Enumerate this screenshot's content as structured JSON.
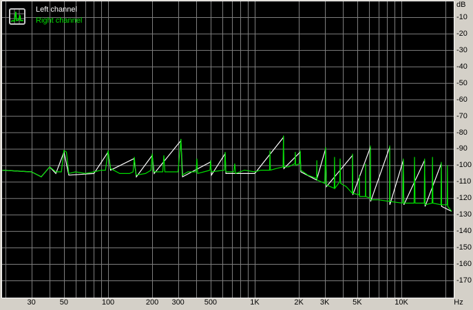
{
  "chart_data": {
    "type": "line",
    "xscale": "log",
    "xlim": [
      19,
      22000
    ],
    "ylim": [
      -180,
      0
    ],
    "grid": true,
    "legend_placement": "top-left",
    "ylabel_unit": "dB",
    "xlabel_unit": "Hz",
    "y_ticks": [
      "-10",
      "-20",
      "-30",
      "-40",
      "-50",
      "-60",
      "-70",
      "-80",
      "-90",
      "-100",
      "-110",
      "-120",
      "-130",
      "-140",
      "-150",
      "-160",
      "-170"
    ],
    "y_tick_values": [
      -10,
      -20,
      -30,
      -40,
      -50,
      -60,
      -70,
      -80,
      -90,
      -100,
      -110,
      -120,
      -130,
      -140,
      -150,
      -160,
      -170
    ],
    "x_ticks": [
      "30",
      "50",
      "100",
      "200",
      "300",
      "500",
      "1K",
      "2K",
      "3K",
      "5K",
      "10K"
    ],
    "x_tick_values": [
      30,
      50,
      100,
      200,
      300,
      500,
      1000,
      2000,
      3000,
      5000,
      10000
    ],
    "series": [
      {
        "name": "Left channel",
        "color": "#ffffff",
        "points": [
          [
            19,
            -103
          ],
          [
            30,
            -104
          ],
          [
            35,
            -107
          ],
          [
            40,
            -101
          ],
          [
            44,
            -105
          ],
          [
            50,
            -92
          ],
          [
            54,
            -106
          ],
          [
            80,
            -105
          ],
          [
            100,
            -92
          ],
          [
            104,
            -103
          ],
          [
            150,
            -96
          ],
          [
            156,
            -107
          ],
          [
            200,
            -94
          ],
          [
            206,
            -105
          ],
          [
            314,
            -85
          ],
          [
            322,
            -107
          ],
          [
            500,
            -98
          ],
          [
            506,
            -106
          ],
          [
            628,
            -93
          ],
          [
            636,
            -105
          ],
          [
            1000,
            -105
          ],
          [
            1570,
            -83
          ],
          [
            1580,
            -102
          ],
          [
            2040,
            -92
          ],
          [
            2060,
            -104
          ],
          [
            2640,
            -109
          ],
          [
            3040,
            -90
          ],
          [
            3080,
            -113
          ],
          [
            4640,
            -94
          ],
          [
            4660,
            -118
          ],
          [
            6150,
            -89
          ],
          [
            6170,
            -122
          ],
          [
            8320,
            -89
          ],
          [
            8340,
            -124
          ],
          [
            10300,
            -97
          ],
          [
            10400,
            -124
          ],
          [
            14400,
            -97
          ],
          [
            14500,
            -125
          ],
          [
            18700,
            -99
          ],
          [
            18800,
            -125
          ],
          [
            22000,
            -128
          ]
        ]
      },
      {
        "name": "Right channel",
        "color": "#00e000",
        "points": [
          [
            19,
            -103
          ],
          [
            30,
            -104
          ],
          [
            35,
            -107
          ],
          [
            40,
            -101
          ],
          [
            44,
            -104
          ],
          [
            48,
            -104
          ],
          [
            50,
            -91
          ],
          [
            52,
            -92
          ],
          [
            54,
            -105
          ],
          [
            60,
            -104
          ],
          [
            70,
            -105
          ],
          [
            80,
            -104
          ],
          [
            90,
            -103
          ],
          [
            96,
            -103
          ],
          [
            100,
            -91
          ],
          [
            104,
            -102
          ],
          [
            120,
            -105
          ],
          [
            140,
            -105
          ],
          [
            148,
            -104
          ],
          [
            151,
            -95
          ],
          [
            155,
            -106
          ],
          [
            180,
            -105
          ],
          [
            196,
            -103
          ],
          [
            200,
            -93
          ],
          [
            204,
            -104
          ],
          [
            236,
            -104
          ],
          [
            240,
            -94
          ],
          [
            244,
            -104
          ],
          [
            300,
            -104
          ],
          [
            314,
            -84
          ],
          [
            320,
            -106
          ],
          [
            350,
            -104
          ],
          [
            398,
            -104
          ],
          [
            403,
            -96
          ],
          [
            408,
            -105
          ],
          [
            450,
            -104
          ],
          [
            495,
            -103
          ],
          [
            500,
            -97
          ],
          [
            505,
            -104
          ],
          [
            620,
            -103
          ],
          [
            628,
            -92
          ],
          [
            636,
            -104
          ],
          [
            720,
            -104
          ],
          [
            731,
            -99
          ],
          [
            740,
            -105
          ],
          [
            850,
            -103
          ],
          [
            1000,
            -104
          ],
          [
            1100,
            -103
          ],
          [
            1260,
            -103
          ],
          [
            1270,
            -91
          ],
          [
            1280,
            -103
          ],
          [
            1400,
            -102
          ],
          [
            1560,
            -101
          ],
          [
            1570,
            -82
          ],
          [
            1580,
            -101
          ],
          [
            1700,
            -101
          ],
          [
            1880,
            -99
          ],
          [
            1890,
            -92
          ],
          [
            1900,
            -100
          ],
          [
            2030,
            -99
          ],
          [
            2040,
            -91
          ],
          [
            2060,
            -103
          ],
          [
            2300,
            -106
          ],
          [
            2640,
            -108
          ],
          [
            2650,
            -97
          ],
          [
            2660,
            -109
          ],
          [
            3000,
            -111
          ],
          [
            3040,
            -89
          ],
          [
            3080,
            -112
          ],
          [
            3480,
            -114
          ],
          [
            3500,
            -95
          ],
          [
            3520,
            -114
          ],
          [
            3800,
            -110
          ],
          [
            3820,
            -96
          ],
          [
            3850,
            -111
          ],
          [
            4200,
            -113
          ],
          [
            4620,
            -117
          ],
          [
            4640,
            -93
          ],
          [
            4660,
            -117
          ],
          [
            5150,
            -118
          ],
          [
            5170,
            -106
          ],
          [
            5190,
            -119
          ],
          [
            5680,
            -119
          ],
          [
            5700,
            -99
          ],
          [
            5720,
            -119
          ],
          [
            6130,
            -120
          ],
          [
            6150,
            -88
          ],
          [
            6170,
            -121
          ],
          [
            7000,
            -121
          ],
          [
            8300,
            -122
          ],
          [
            8320,
            -88
          ],
          [
            8340,
            -122
          ],
          [
            10200,
            -123
          ],
          [
            10300,
            -96
          ],
          [
            10400,
            -123
          ],
          [
            12200,
            -123
          ],
          [
            12300,
            -95
          ],
          [
            12400,
            -123
          ],
          [
            14300,
            -123
          ],
          [
            14400,
            -96
          ],
          [
            14500,
            -124
          ],
          [
            16200,
            -123
          ],
          [
            16300,
            -95
          ],
          [
            16400,
            -123
          ],
          [
            18600,
            -124
          ],
          [
            18700,
            -98
          ],
          [
            18800,
            -124
          ],
          [
            20500,
            -124
          ],
          [
            20600,
            -100
          ],
          [
            20700,
            -125
          ],
          [
            22000,
            -128
          ]
        ]
      }
    ]
  },
  "legend": {
    "left": "Left channel",
    "right": "Right channel",
    "icon": "spectrum-icon"
  }
}
